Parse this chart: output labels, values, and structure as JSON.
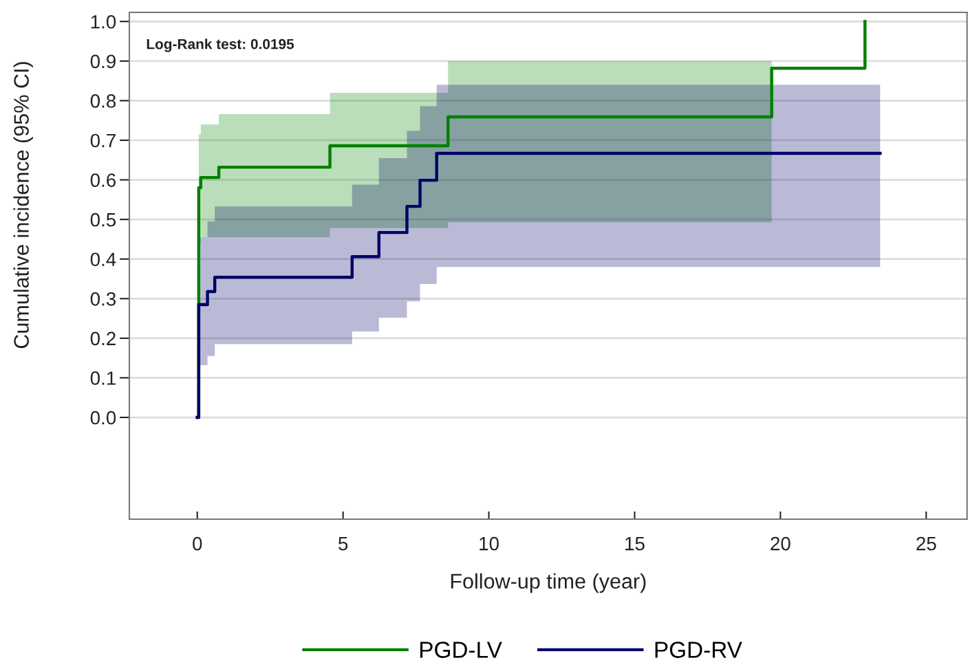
{
  "chart_data": {
    "type": "step",
    "xlabel": "Follow-up time (year)",
    "ylabel": "Cumulative incidence (95% CI)",
    "annotations": [
      "Log-Rank test: 0.0195"
    ],
    "series": [
      {
        "name": "PGD-LV",
        "color": "#008000",
        "x": [
          0,
          0.05,
          0.12,
          0.74,
          4.55,
          8.6,
          19.7,
          22.9
        ],
        "values": [
          0,
          0.58,
          0.606,
          0.632,
          0.686,
          0.759,
          0.882,
          1.0
        ],
        "lower": [
          null,
          0.44,
          0.455,
          0.455,
          0.478,
          0.493,
          0.493,
          null
        ],
        "upper": [
          null,
          0.715,
          0.74,
          0.766,
          0.82,
          0.9,
          0.9,
          null
        ]
      },
      {
        "name": "PGD-RV",
        "color": "#000066",
        "x": [
          0,
          0.05,
          0.35,
          0.6,
          5.31,
          6.23,
          7.19,
          7.64,
          8.21,
          23.42
        ],
        "values": [
          0,
          0.285,
          0.318,
          0.354,
          0.406,
          0.467,
          0.533,
          0.599,
          0.667,
          0.667
        ],
        "lower": [
          null,
          0.132,
          0.155,
          0.185,
          0.217,
          0.252,
          0.293,
          0.337,
          0.38,
          0.38
        ],
        "upper": [
          null,
          0.455,
          0.495,
          0.533,
          0.588,
          0.655,
          0.724,
          0.786,
          0.84,
          0.84
        ]
      }
    ],
    "xlim": [
      -2.33,
      26.4
    ],
    "ylim": [
      -0.257,
      1.023
    ],
    "xticks": [
      0,
      5,
      10,
      15,
      20,
      25
    ],
    "yticks": [
      {
        "value": 0,
        "label": "0.0"
      },
      0.1,
      0.2,
      0.3,
      0.4,
      0.5,
      0.6,
      0.7,
      0.8,
      0.9,
      {
        "value": 1,
        "label": "1.0"
      }
    ],
    "grid": "y",
    "legend": "bottom",
    "line_style": "solid",
    "marker": "none"
  }
}
